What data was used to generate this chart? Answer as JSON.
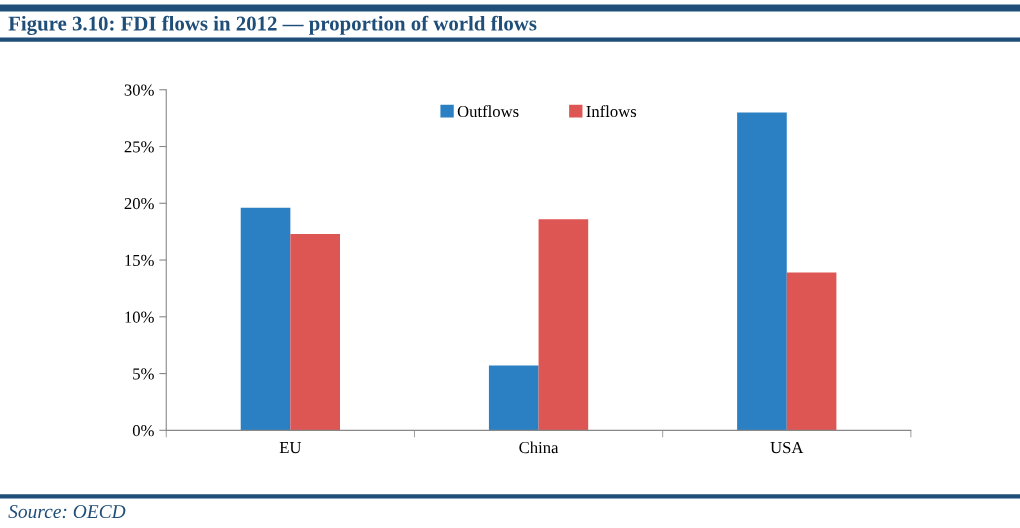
{
  "chart_data": {
    "type": "bar",
    "title": "Figure 3.10: FDI flows in 2012 — proportion of world flows",
    "categories": [
      "EU",
      "China",
      "USA"
    ],
    "series": [
      {
        "name": "Outflows",
        "color": "#2a80c2",
        "values": [
          19.6,
          5.7,
          28.0
        ]
      },
      {
        "name": "Inflows",
        "color": "#de5654",
        "values": [
          17.3,
          18.6,
          13.9
        ]
      }
    ],
    "ylim": [
      0,
      30
    ],
    "yticks": [
      {
        "value": 0,
        "label": "0%"
      },
      {
        "value": 5,
        "label": "5%"
      },
      {
        "value": 10,
        "label": "10%"
      },
      {
        "value": 15,
        "label": "15%"
      },
      {
        "value": 20,
        "label": "20%"
      },
      {
        "value": 25,
        "label": "25%"
      },
      {
        "value": 30,
        "label": "30%"
      }
    ],
    "grid": false,
    "legend": "top",
    "annotations": [
      "Source: OECD"
    ]
  }
}
